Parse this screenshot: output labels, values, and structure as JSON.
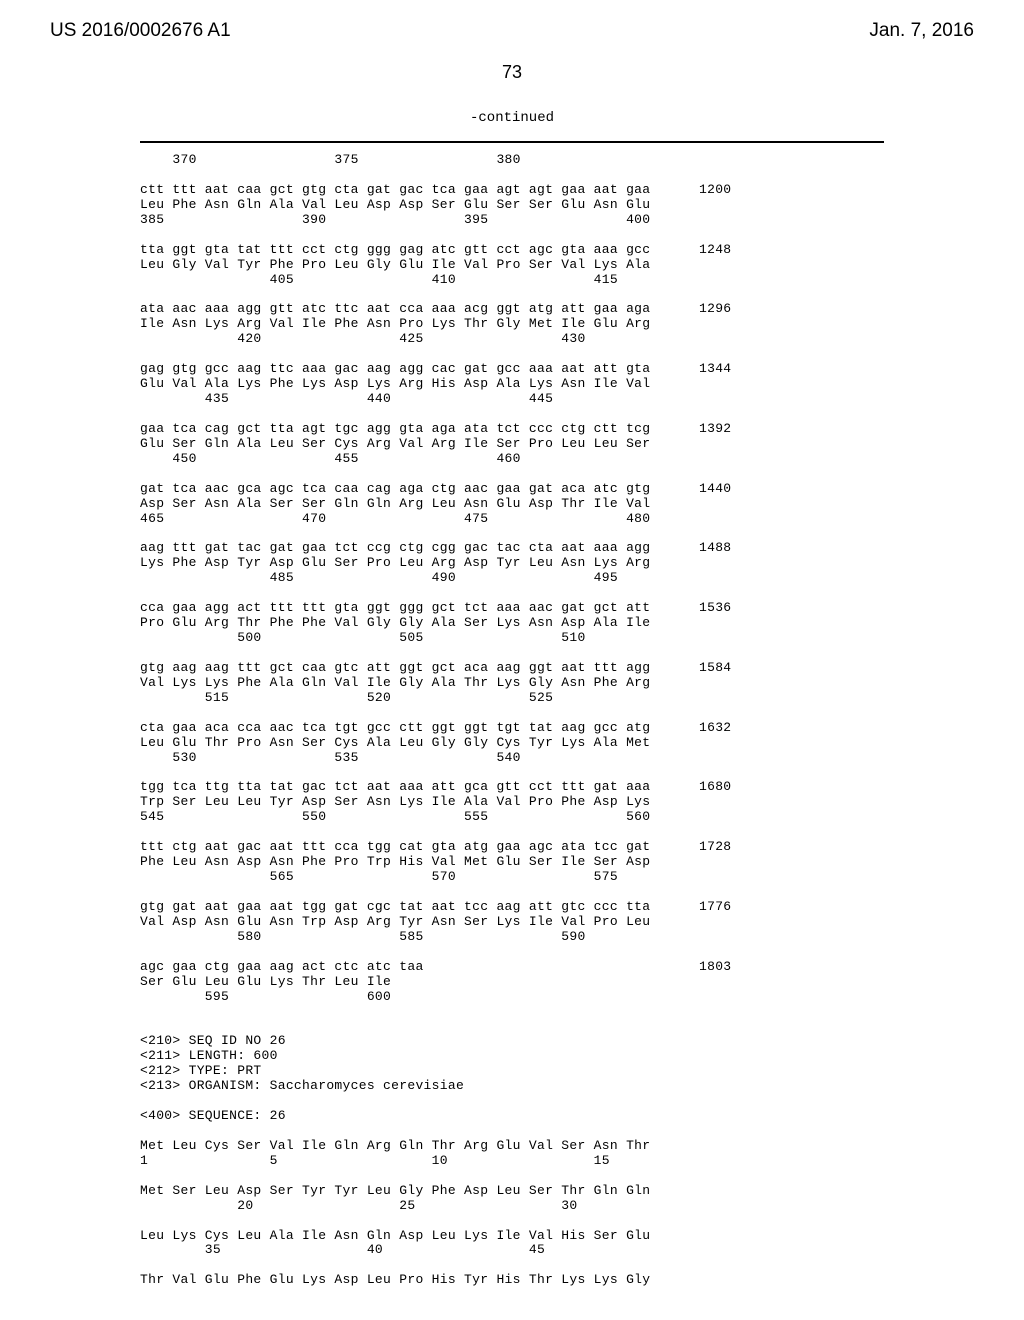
{
  "header": {
    "patent_no": "US 2016/0002676 A1",
    "date": "Jan. 7, 2016"
  },
  "page_number": "73",
  "continued_label": "-continued",
  "sequence_lines": [
    "    370                 375                 380",
    "",
    "ctt ttt aat caa gct gtg cta gat gac tca gaa agt agt gaa aat gaa      1200",
    "Leu Phe Asn Gln Ala Val Leu Asp Asp Ser Glu Ser Ser Glu Asn Glu",
    "385                 390                 395                 400",
    "",
    "tta ggt gta tat ttt cct ctg ggg gag atc gtt cct agc gta aaa gcc      1248",
    "Leu Gly Val Tyr Phe Pro Leu Gly Glu Ile Val Pro Ser Val Lys Ala",
    "                405                 410                 415",
    "",
    "ata aac aaa agg gtt atc ttc aat cca aaa acg ggt atg att gaa aga      1296",
    "Ile Asn Lys Arg Val Ile Phe Asn Pro Lys Thr Gly Met Ile Glu Arg",
    "            420                 425                 430",
    "",
    "gag gtg gcc aag ttc aaa gac aag agg cac gat gcc aaa aat att gta      1344",
    "Glu Val Ala Lys Phe Lys Asp Lys Arg His Asp Ala Lys Asn Ile Val",
    "        435                 440                 445",
    "",
    "gaa tca cag gct tta agt tgc agg gta aga ata tct ccc ctg ctt tcg      1392",
    "Glu Ser Gln Ala Leu Ser Cys Arg Val Arg Ile Ser Pro Leu Leu Ser",
    "    450                 455                 460",
    "",
    "gat tca aac gca agc tca caa cag aga ctg aac gaa gat aca atc gtg      1440",
    "Asp Ser Asn Ala Ser Ser Gln Gln Arg Leu Asn Glu Asp Thr Ile Val",
    "465                 470                 475                 480",
    "",
    "aag ttt gat tac gat gaa tct ccg ctg cgg gac tac cta aat aaa agg      1488",
    "Lys Phe Asp Tyr Asp Glu Ser Pro Leu Arg Asp Tyr Leu Asn Lys Arg",
    "                485                 490                 495",
    "",
    "cca gaa agg act ttt ttt gta ggt ggg gct tct aaa aac gat gct att      1536",
    "Pro Glu Arg Thr Phe Phe Val Gly Gly Ala Ser Lys Asn Asp Ala Ile",
    "            500                 505                 510",
    "",
    "gtg aag aag ttt gct caa gtc att ggt gct aca aag ggt aat ttt agg      1584",
    "Val Lys Lys Phe Ala Gln Val Ile Gly Ala Thr Lys Gly Asn Phe Arg",
    "        515                 520                 525",
    "",
    "cta gaa aca cca aac tca tgt gcc ctt ggt ggt tgt tat aag gcc atg      1632",
    "Leu Glu Thr Pro Asn Ser Cys Ala Leu Gly Gly Cys Tyr Lys Ala Met",
    "    530                 535                 540",
    "",
    "tgg tca ttg tta tat gac tct aat aaa att gca gtt cct ttt gat aaa      1680",
    "Trp Ser Leu Leu Tyr Asp Ser Asn Lys Ile Ala Val Pro Phe Asp Lys",
    "545                 550                 555                 560",
    "",
    "ttt ctg aat gac aat ttt cca tgg cat gta atg gaa agc ata tcc gat      1728",
    "Phe Leu Asn Asp Asn Phe Pro Trp His Val Met Glu Ser Ile Ser Asp",
    "                565                 570                 575",
    "",
    "gtg gat aat gaa aat tgg gat cgc tat aat tcc aag att gtc ccc tta      1776",
    "Val Asp Asn Glu Asn Trp Asp Arg Tyr Asn Ser Lys Ile Val Pro Leu",
    "            580                 585                 590",
    "",
    "agc gaa ctg gaa aag act ctc atc taa                                  1803",
    "Ser Glu Leu Glu Lys Thr Leu Ile",
    "        595                 600",
    "",
    "",
    "<210> SEQ ID NO 26",
    "<211> LENGTH: 600",
    "<212> TYPE: PRT",
    "<213> ORGANISM: Saccharomyces cerevisiae",
    "",
    "<400> SEQUENCE: 26",
    "",
    "Met Leu Cys Ser Val Ile Gln Arg Gln Thr Arg Glu Val Ser Asn Thr",
    "1               5                   10                  15",
    "",
    "Met Ser Leu Asp Ser Tyr Tyr Leu Gly Phe Asp Leu Ser Thr Gln Gln",
    "            20                  25                  30",
    "",
    "Leu Lys Cys Leu Ala Ile Asn Gln Asp Leu Lys Ile Val His Ser Glu",
    "        35                  40                  45",
    "",
    "Thr Val Glu Phe Glu Lys Asp Leu Pro His Tyr His Thr Lys Lys Gly"
  ]
}
